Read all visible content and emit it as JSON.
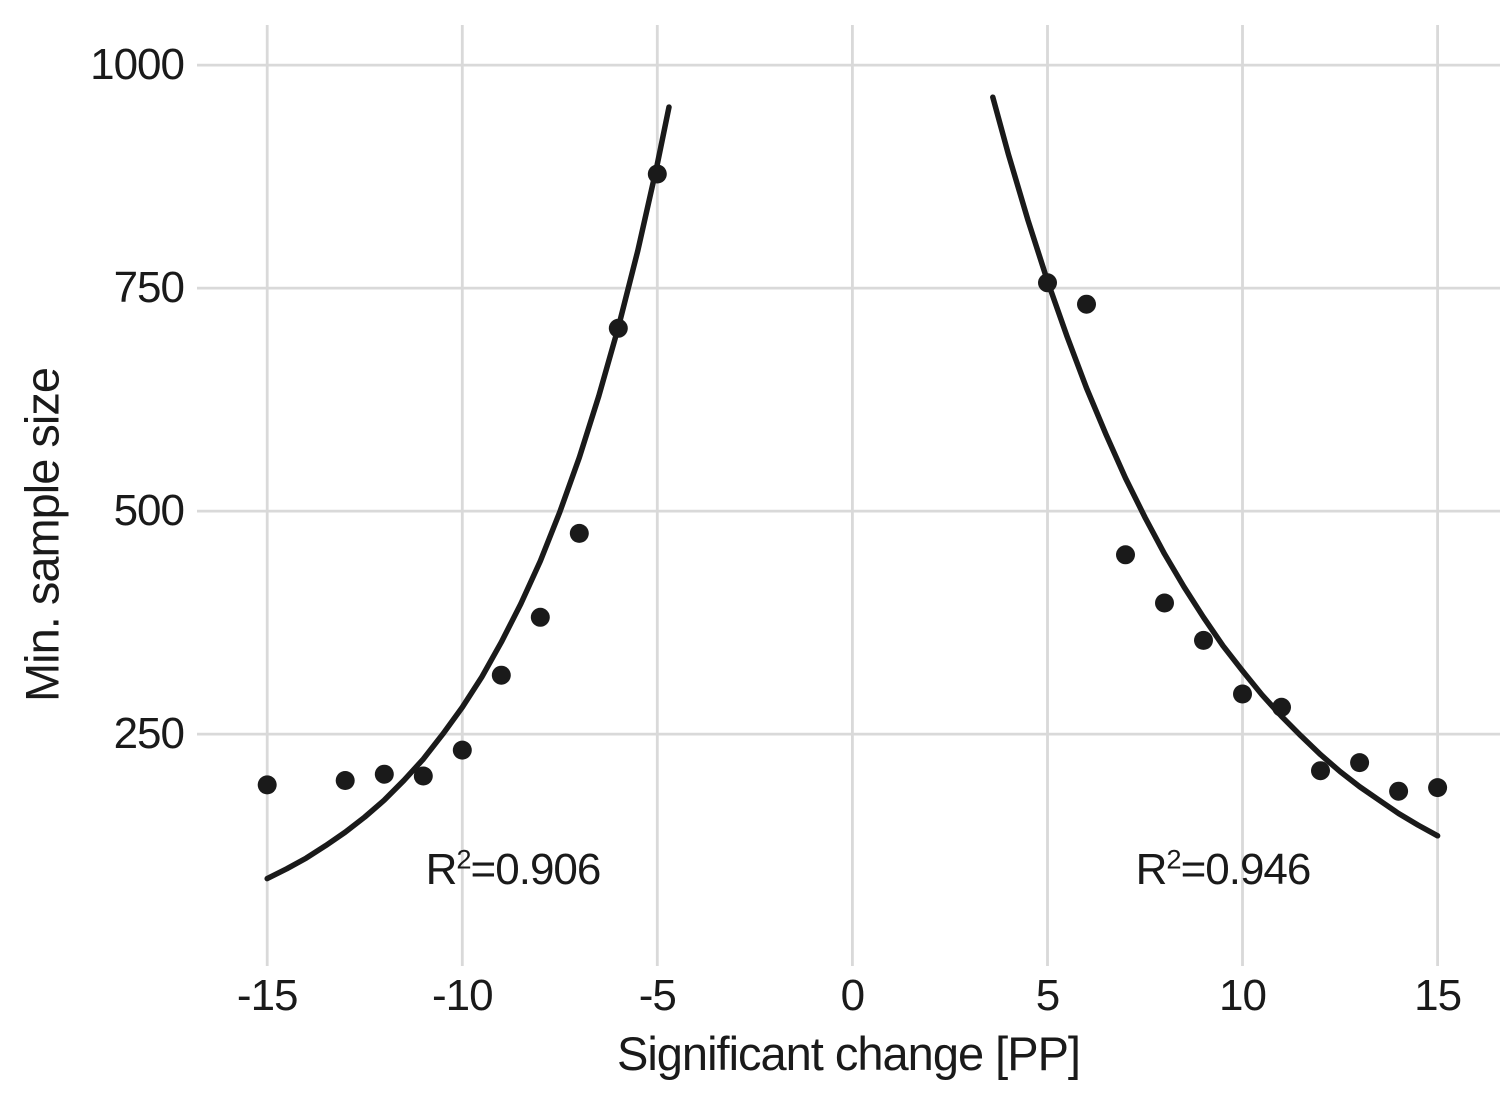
{
  "chart_data": {
    "type": "scatter",
    "title": "",
    "xlabel": "Significant change [PP]",
    "ylabel": "Min. sample size",
    "x_ticks": [
      -15,
      -10,
      -5,
      0,
      5,
      10,
      15
    ],
    "x_tick_labels": [
      "-15",
      "-10",
      "-5",
      "0",
      "5",
      "10",
      "15"
    ],
    "y_ticks": [
      250,
      500,
      750,
      1000
    ],
    "y_tick_labels": [
      "250",
      "500",
      "750",
      "1000"
    ],
    "xlim": [
      -16.8,
      16.6
    ],
    "ylim": [
      -10,
      1045
    ],
    "grid": "major-only",
    "legend": "none",
    "series": [
      {
        "name": "negative-change-points",
        "type": "points",
        "x": [
          -15,
          -13,
          -12,
          -11,
          -10,
          -9,
          -8,
          -7,
          -6,
          -5
        ],
        "y": [
          193,
          198,
          205,
          203,
          232,
          316,
          381,
          475,
          705,
          878
        ]
      },
      {
        "name": "positive-change-points",
        "type": "points",
        "x": [
          5,
          6,
          7,
          8,
          9,
          10,
          11,
          12,
          13,
          14,
          15
        ],
        "y": [
          756,
          732,
          451,
          397,
          355,
          295,
          280,
          209,
          218,
          186,
          190
        ]
      },
      {
        "name": "negative-fit-curve",
        "type": "line",
        "x": [
          -15,
          -14.5,
          -14,
          -13.5,
          -13,
          -12.5,
          -12,
          -11.5,
          -11,
          -10.5,
          -10,
          -9.5,
          -9,
          -8.5,
          -8,
          -7.5,
          -7,
          -6.5,
          -6,
          -5.5,
          -5,
          -4.7
        ],
        "y": [
          88,
          99,
          111,
          125,
          140,
          157,
          176,
          198,
          222,
          250,
          280,
          314,
          353,
          396,
          444,
          499,
          560,
          629,
          706,
          792,
          889,
          953
        ]
      },
      {
        "name": "positive-fit-curve",
        "type": "line",
        "x": [
          3.6,
          4,
          4.5,
          5,
          5.5,
          6,
          6.5,
          7,
          7.5,
          8,
          8.5,
          9,
          9.5,
          10,
          10.5,
          11,
          11.5,
          12,
          12.5,
          13,
          13.5,
          14,
          14.5,
          15
        ],
        "y": [
          964,
          900,
          826,
          758,
          696,
          638,
          586,
          537,
          493,
          452,
          415,
          381,
          349,
          321,
          294,
          270,
          248,
          227,
          208,
          191,
          176,
          161,
          148,
          136
        ]
      }
    ],
    "annotations": [
      {
        "x": -8.7,
        "y": 96,
        "label": "R²=0.906",
        "prefix": "R",
        "sup": "2",
        "rest": "=0.906"
      },
      {
        "x": 9.5,
        "y": 96,
        "label": "R²=0.946",
        "prefix": "R",
        "sup": "2",
        "rest": "=0.946"
      }
    ],
    "colors": {
      "points": "#1a1a1a",
      "curve": "#1a1a1a",
      "gridline": "#d9d9d9",
      "text": "#1a1a1a",
      "background": "#ffffff"
    }
  }
}
